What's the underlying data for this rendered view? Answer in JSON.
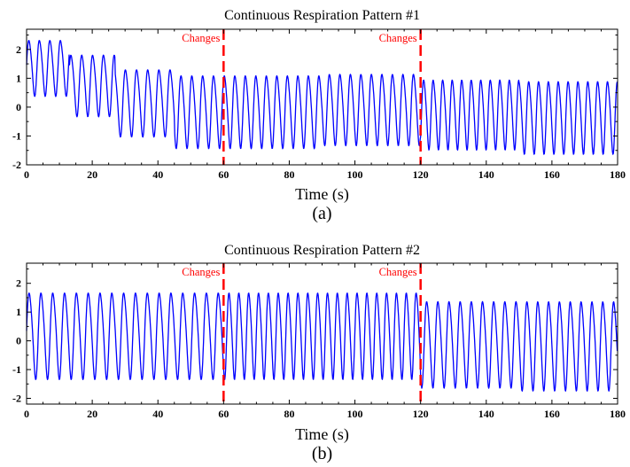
{
  "chart_data": [
    {
      "type": "line",
      "title": "Continuous Respiration Pattern #1",
      "xlabel": "Time (s)",
      "ylabel": "",
      "caption": "(a)",
      "xlim": [
        0,
        180
      ],
      "ylim": [
        -2,
        2.7
      ],
      "xticks": [
        "0",
        "20",
        "40",
        "60",
        "80",
        "100",
        "120",
        "140",
        "160",
        "180"
      ],
      "yticks": [
        "2",
        "1",
        "0",
        "-1",
        "-2"
      ],
      "grid": false,
      "color": "#0000ff",
      "annotations": [
        {
          "x": 60,
          "label": "Changes",
          "color": "#ff0000"
        },
        {
          "x": 120,
          "label": "Changes",
          "color": "#ff0000"
        }
      ],
      "series": [
        {
          "segments": [
            {
              "t0": 0,
              "t1": 13,
              "period": 3.2,
              "max": 2.4,
              "min": 0.4
            },
            {
              "t0": 13,
              "t1": 27,
              "period": 3.3,
              "max": 1.9,
              "min": -0.3
            },
            {
              "t0": 27,
              "t1": 45,
              "period": 3.4,
              "max": 1.4,
              "min": -1.0
            },
            {
              "t0": 45,
              "t1": 60,
              "period": 3.3,
              "max": 1.2,
              "min": -1.4
            },
            {
              "t0": 60,
              "t1": 90,
              "period": 3.2,
              "max": 1.2,
              "min": -1.4
            },
            {
              "t0": 90,
              "t1": 120,
              "period": 3.2,
              "max": 1.25,
              "min": -1.3
            },
            {
              "t0": 120,
              "t1": 150,
              "period": 2.9,
              "max": 1.05,
              "min": -1.45
            },
            {
              "t0": 150,
              "t1": 180,
              "period": 3.0,
              "max": 1.0,
              "min": -1.6
            }
          ]
        }
      ]
    },
    {
      "type": "line",
      "title": "Continuous Respiration Pattern #2",
      "xlabel": "Time (s)",
      "ylabel": "",
      "caption": "(b)",
      "xlim": [
        0,
        180
      ],
      "ylim": [
        -2.2,
        2.7
      ],
      "xticks": [
        "0",
        "20",
        "40",
        "60",
        "80",
        "100",
        "120",
        "140",
        "160",
        "180"
      ],
      "yticks": [
        "2",
        "1",
        "0",
        "-1",
        "-2"
      ],
      "grid": false,
      "color": "#0000ff",
      "annotations": [
        {
          "x": 60,
          "label": "Changes",
          "color": "#ff0000"
        },
        {
          "x": 120,
          "label": "Changes",
          "color": "#ff0000"
        }
      ],
      "series": [
        {
          "segments": [
            {
              "t0": 0,
              "t1": 60,
              "period": 3.6,
              "max": 1.8,
              "min": -1.3
            },
            {
              "t0": 60,
              "t1": 120,
              "period": 3.0,
              "max": 1.8,
              "min": -1.3
            },
            {
              "t0": 120,
              "t1": 150,
              "period": 3.4,
              "max": 1.5,
              "min": -1.6
            },
            {
              "t0": 150,
              "t1": 180,
              "period": 3.3,
              "max": 1.5,
              "min": -1.7
            }
          ]
        }
      ]
    }
  ]
}
